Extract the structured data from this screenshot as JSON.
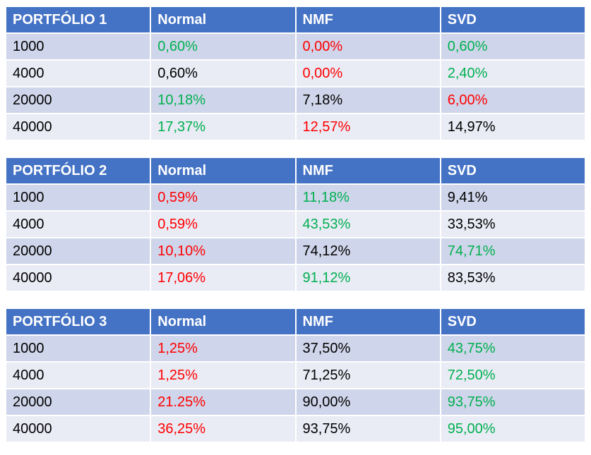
{
  "colors": {
    "header_bg": "#4472c4",
    "row_odd_bg": "#cfd5ea",
    "row_even_bg": "#e9ebf5",
    "green": "#00b050",
    "red": "#ff0000",
    "black": "#000000"
  },
  "tables": [
    {
      "title": "PORTFÓLIO 1",
      "columns": [
        "Normal",
        "NMF",
        "SVD"
      ],
      "rows": [
        {
          "label": "1000",
          "cells": [
            {
              "v": "0,60%",
              "c": "green"
            },
            {
              "v": "0,00%",
              "c": "red"
            },
            {
              "v": "0,60%",
              "c": "green"
            }
          ]
        },
        {
          "label": "4000",
          "cells": [
            {
              "v": "0,60%",
              "c": "black"
            },
            {
              "v": "0,00%",
              "c": "red"
            },
            {
              "v": "2,40%",
              "c": "green"
            }
          ]
        },
        {
          "label": "20000",
          "cells": [
            {
              "v": "10,18%",
              "c": "green"
            },
            {
              "v": "7,18%",
              "c": "black"
            },
            {
              "v": "6,00%",
              "c": "red"
            }
          ]
        },
        {
          "label": "40000",
          "cells": [
            {
              "v": "17,37%",
              "c": "green"
            },
            {
              "v": "12,57%",
              "c": "red"
            },
            {
              "v": "14,97%",
              "c": "black"
            }
          ]
        }
      ]
    },
    {
      "title": "PORTFÓLIO 2",
      "columns": [
        "Normal",
        "NMF",
        "SVD"
      ],
      "rows": [
        {
          "label": "1000",
          "cells": [
            {
              "v": "0,59%",
              "c": "red"
            },
            {
              "v": "11,18%",
              "c": "green"
            },
            {
              "v": "9,41%",
              "c": "black"
            }
          ]
        },
        {
          "label": "4000",
          "cells": [
            {
              "v": "0,59%",
              "c": "red"
            },
            {
              "v": "43,53%",
              "c": "green"
            },
            {
              "v": "33,53%",
              "c": "black"
            }
          ]
        },
        {
          "label": "20000",
          "cells": [
            {
              "v": "10,10%",
              "c": "red"
            },
            {
              "v": "74,12%",
              "c": "black"
            },
            {
              "v": "74,71%",
              "c": "green"
            }
          ]
        },
        {
          "label": "40000",
          "cells": [
            {
              "v": "17,06%",
              "c": "red"
            },
            {
              "v": "91,12%",
              "c": "green"
            },
            {
              "v": "83,53%",
              "c": "black"
            }
          ]
        }
      ]
    },
    {
      "title": "PORTFÓLIO 3",
      "columns": [
        "Normal",
        "NMF",
        "SVD"
      ],
      "rows": [
        {
          "label": "1000",
          "cells": [
            {
              "v": "1,25%",
              "c": "red"
            },
            {
              "v": "37,50%",
              "c": "black"
            },
            {
              "v": "43,75%",
              "c": "green"
            }
          ]
        },
        {
          "label": "4000",
          "cells": [
            {
              "v": "1,25%",
              "c": "red"
            },
            {
              "v": "71,25%",
              "c": "black"
            },
            {
              "v": "72,50%",
              "c": "green"
            }
          ]
        },
        {
          "label": "20000",
          "cells": [
            {
              "v": "21.25%",
              "c": "red"
            },
            {
              "v": "90,00%",
              "c": "black"
            },
            {
              "v": "93,75%",
              "c": "green"
            }
          ]
        },
        {
          "label": "40000",
          "cells": [
            {
              "v": "36,25%",
              "c": "red"
            },
            {
              "v": "93,75%",
              "c": "black"
            },
            {
              "v": "95,00%",
              "c": "green"
            }
          ]
        }
      ]
    }
  ]
}
